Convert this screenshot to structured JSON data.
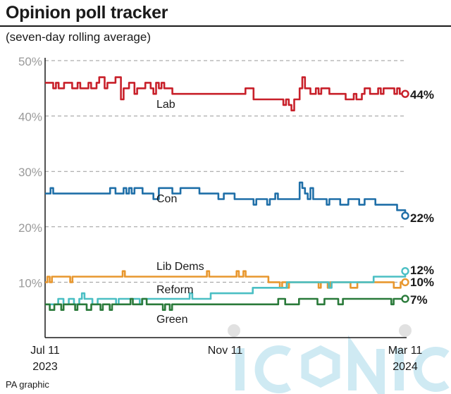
{
  "header": {
    "title": "Opinion poll tracker",
    "subtitle": "(seven-day rolling average)"
  },
  "footer": {
    "credit": "PA graphic"
  },
  "watermark": {
    "text": "iconic"
  },
  "chart_data": {
    "type": "line",
    "ylim": [
      0,
      50
    ],
    "y_ticks": [
      10,
      20,
      30,
      40,
      50
    ],
    "y_tick_labels": [
      "10%",
      "20%",
      "30%",
      "40%",
      "50%"
    ],
    "x_tick_labels": [
      {
        "line1": "Jul 11",
        "line2": "2023"
      },
      {
        "line1": "Nov 11",
        "line2": ""
      },
      {
        "line1": "Mar 11",
        "line2": "2024"
      }
    ],
    "grid": "horizontal dashed",
    "series": [
      {
        "name": "Lab",
        "color": "#c8202a",
        "end_label": "44%",
        "values": [
          46,
          46,
          46,
          45,
          46,
          45,
          45,
          46,
          46,
          46,
          45,
          45,
          46,
          45,
          45,
          45,
          46,
          45,
          45,
          46,
          47,
          47,
          45,
          46,
          46,
          46,
          47,
          47,
          43,
          45,
          45,
          46,
          46,
          44,
          45,
          45,
          45,
          46,
          46,
          45,
          44,
          46,
          45,
          46,
          45,
          45,
          45,
          44,
          44,
          44,
          44,
          44,
          44,
          44,
          44,
          44,
          44,
          44,
          44,
          44,
          44,
          44,
          44,
          44,
          44,
          44,
          44,
          44,
          44,
          44,
          44,
          44,
          44,
          44,
          45,
          45,
          45,
          43,
          43,
          43,
          43,
          43,
          43,
          43,
          43,
          43,
          43,
          43,
          42,
          43,
          42,
          41,
          43,
          43,
          45,
          47,
          45,
          45,
          44,
          44,
          45,
          44,
          45,
          45,
          45,
          44,
          44,
          44,
          44,
          44,
          44,
          43,
          43,
          43,
          44,
          43,
          43,
          44,
          45,
          45,
          44,
          44,
          44,
          45,
          44,
          45,
          45,
          45,
          45,
          44,
          45,
          44,
          44,
          44
        ]
      },
      {
        "name": "Con",
        "color": "#1f6fa8",
        "end_label": "22%",
        "values": [
          26,
          26,
          27,
          26,
          26,
          26,
          26,
          26,
          26,
          26,
          26,
          26,
          26,
          26,
          26,
          26,
          26,
          26,
          26,
          26,
          26,
          26,
          26,
          26,
          27,
          27,
          26,
          26,
          26,
          27,
          26,
          27,
          26,
          27,
          27,
          27,
          26,
          26,
          26,
          26,
          25,
          25,
          27,
          27,
          27,
          27,
          27,
          26,
          26,
          26,
          27,
          27,
          27,
          27,
          27,
          27,
          27,
          26,
          26,
          26,
          26,
          26,
          26,
          26,
          25,
          25,
          26,
          26,
          26,
          26,
          25,
          25,
          25,
          25,
          25,
          25,
          25,
          24,
          25,
          25,
          25,
          25,
          24,
          25,
          25,
          26,
          25,
          25,
          25,
          25,
          25,
          25,
          25,
          25,
          28,
          27,
          26,
          25,
          27,
          25,
          25,
          25,
          25,
          25,
          24,
          25,
          25,
          25,
          25,
          24,
          24,
          24,
          25,
          25,
          25,
          25,
          24,
          24,
          25,
          25,
          25,
          25,
          24,
          24,
          24,
          24,
          24,
          24,
          24,
          24,
          23,
          23,
          23,
          22
        ]
      },
      {
        "name": "Lib Dems",
        "color": "#e8972e",
        "end_label": "",
        "values": [
          10,
          11,
          10,
          11,
          11,
          11,
          11,
          11,
          11,
          11,
          11,
          10,
          11,
          11,
          11,
          11,
          11,
          11,
          11,
          11,
          11,
          11,
          11,
          11,
          11,
          11,
          11,
          11,
          11,
          11,
          11,
          11,
          11,
          11,
          12,
          11,
          11,
          11,
          11,
          11,
          11,
          11,
          11,
          11,
          11,
          11,
          11,
          11,
          11,
          11,
          11,
          11,
          11,
          11,
          11,
          11,
          11,
          11,
          11,
          11,
          11,
          11,
          11,
          11,
          11,
          11,
          11,
          11,
          11,
          11,
          11,
          12,
          11,
          11,
          11,
          11,
          11,
          11,
          11,
          11,
          11,
          11,
          11,
          11,
          12,
          11,
          11,
          12,
          11,
          11,
          11,
          11,
          11,
          11,
          11,
          11,
          11,
          11,
          10,
          10,
          10,
          10,
          10,
          9,
          10,
          10,
          9,
          10,
          10,
          10,
          10,
          10,
          10,
          10,
          10,
          10,
          10,
          10,
          10,
          10,
          9,
          10,
          10,
          10,
          9,
          10,
          10,
          10,
          10,
          10,
          10,
          10,
          10,
          10,
          9,
          9,
          9,
          10,
          10,
          10,
          10,
          10,
          10,
          10,
          10,
          10,
          10,
          10,
          10,
          10,
          10,
          10,
          10,
          9,
          9,
          9,
          10,
          10,
          10
        ]
      },
      {
        "name": "Reform",
        "color": "#4bbfc4",
        "end_label": "",
        "values": [
          6,
          6,
          6,
          6,
          6,
          7,
          7,
          6,
          6,
          7,
          7,
          6,
          6,
          7,
          8,
          7,
          7,
          7,
          6,
          6,
          7,
          7,
          7,
          7,
          7,
          7,
          7,
          6,
          7,
          7,
          7,
          7,
          7,
          7,
          7,
          7,
          6,
          7,
          7,
          7,
          7,
          7,
          7,
          7,
          7,
          7,
          7,
          7,
          7,
          7,
          7,
          7,
          7,
          7,
          7,
          8,
          7,
          7,
          7,
          7,
          7,
          7,
          7,
          8,
          8,
          8,
          8,
          8,
          8,
          8,
          8,
          8,
          8,
          8,
          8,
          8,
          8,
          8,
          8,
          9,
          9,
          9,
          9,
          9,
          9,
          9,
          9,
          9,
          9,
          9,
          9,
          9,
          10,
          10,
          10,
          10,
          10,
          10,
          10,
          10,
          10,
          10,
          10,
          10,
          10,
          10,
          10,
          10,
          9,
          10,
          10,
          10,
          10,
          10,
          10,
          10,
          10,
          10,
          10,
          10,
          10,
          10,
          10,
          10,
          10,
          11,
          11,
          11,
          11,
          11,
          11,
          11,
          11,
          11,
          11,
          11,
          11,
          12
        ]
      },
      {
        "name": "Green",
        "color": "#2a7a3a",
        "end_label": "7%",
        "values": [
          6,
          6,
          5,
          5,
          6,
          6,
          6,
          5,
          6,
          6,
          6,
          6,
          6,
          5,
          6,
          6,
          6,
          6,
          5,
          5,
          6,
          6,
          6,
          6,
          5,
          6,
          6,
          6,
          5,
          6,
          6,
          6,
          6,
          6,
          6,
          6,
          6,
          7,
          6,
          6,
          6,
          6,
          7,
          7,
          6,
          6,
          6,
          6,
          6,
          6,
          6,
          5,
          6,
          6,
          5,
          6,
          6,
          6,
          6,
          6,
          6,
          6,
          6,
          6,
          6,
          6,
          6,
          6,
          6,
          6,
          6,
          6,
          6,
          6,
          6,
          6,
          6,
          6,
          6,
          6,
          6,
          6,
          6,
          6,
          6,
          6,
          6,
          6,
          6,
          6,
          6,
          6,
          6,
          6,
          6,
          6,
          6,
          6,
          6,
          6,
          6,
          7,
          7,
          7,
          6,
          6,
          6,
          6,
          6,
          6,
          7,
          7,
          7,
          7,
          7,
          7,
          7,
          7,
          6,
          6,
          6,
          7,
          7,
          7,
          7,
          7,
          7,
          6,
          6,
          7,
          7,
          7,
          7,
          7,
          7,
          7,
          7,
          7,
          7,
          7,
          7,
          7,
          7,
          7,
          7,
          7,
          7,
          7,
          7,
          7,
          6,
          7,
          7,
          7,
          7,
          7,
          7
        ]
      }
    ],
    "inline_labels": [
      "Lab",
      "Con",
      "Lib Dems",
      "Reform",
      "Green"
    ],
    "end_labels": [
      {
        "series": "Lab",
        "text": "44%"
      },
      {
        "series": "Con",
        "text": "22%"
      },
      {
        "series": "Reform",
        "text": "12%"
      },
      {
        "series": "Lib Dems",
        "text": "10%"
      },
      {
        "series": "Green",
        "text": "7%"
      }
    ]
  }
}
